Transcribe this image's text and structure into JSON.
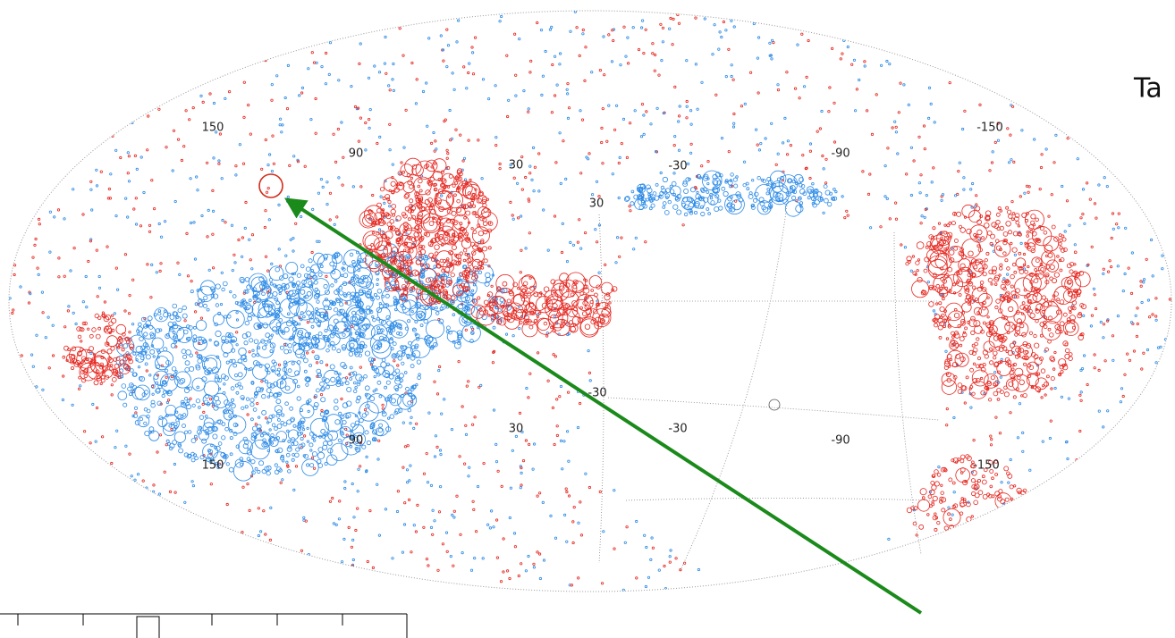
{
  "title_fragment": "Ta",
  "grid_labels": {
    "top": [
      "150",
      "90",
      "30",
      "-30",
      "-90",
      "-150"
    ],
    "middle": [
      "30",
      "-30"
    ],
    "bottom": [
      "150",
      "90",
      "30",
      "-30",
      "-90",
      "-150"
    ]
  }
}
